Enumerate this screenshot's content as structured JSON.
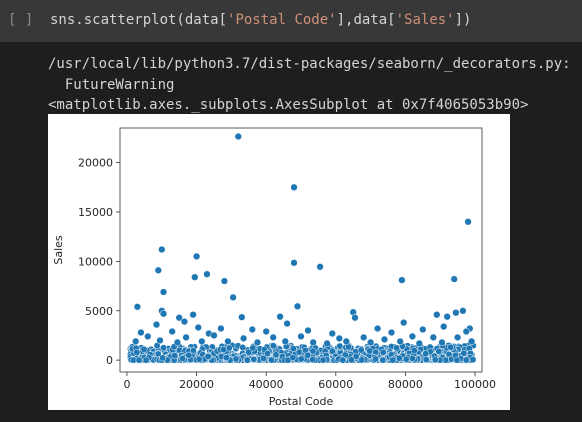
{
  "cell": {
    "run_indicator": "[ ]",
    "code": {
      "prefix": "sns.scatterplot(data[",
      "arg1": "'Postal Code'",
      "mid": "],data[",
      "arg2": "'Sales'",
      "suffix": "])"
    }
  },
  "output": {
    "warning_path": "/usr/local/lib/python3.7/dist-packages/seaborn/_decorators.py:",
    "warning_type": "  FutureWarning",
    "repr": "<matplotlib.axes._subplots.AxesSubplot at 0x7f4065053b90>"
  },
  "chart_data": {
    "type": "scatter",
    "xlabel": "Postal Code",
    "ylabel": "Sales",
    "xlim": [
      -2000,
      102000
    ],
    "ylim": [
      -1200,
      23500
    ],
    "xticks": [
      0,
      20000,
      40000,
      60000,
      80000,
      100000
    ],
    "yticks": [
      0,
      5000,
      10000,
      15000,
      20000
    ],
    "point_color": "#1f77b4",
    "grid": false,
    "points": [
      [
        32000,
        22638
      ],
      [
        48000,
        17500
      ],
      [
        98000,
        14000
      ],
      [
        10000,
        11200
      ],
      [
        20000,
        10500
      ],
      [
        48000,
        9850
      ],
      [
        55500,
        9450
      ],
      [
        9000,
        9100
      ],
      [
        23000,
        8700
      ],
      [
        19500,
        8400
      ],
      [
        28000,
        8000
      ],
      [
        79000,
        8100
      ],
      [
        94000,
        8200
      ],
      [
        10500,
        6900
      ],
      [
        30500,
        6350
      ],
      [
        3000,
        5400
      ],
      [
        49000,
        5450
      ],
      [
        10000,
        5000
      ],
      [
        96500,
        5000
      ],
      [
        65000,
        4850
      ],
      [
        19000,
        4600
      ],
      [
        15000,
        4300
      ],
      [
        33000,
        4350
      ],
      [
        44000,
        4400
      ],
      [
        89000,
        4600
      ],
      [
        92000,
        4400
      ],
      [
        94500,
        4800
      ],
      [
        10500,
        4700
      ],
      [
        98500,
        3200
      ],
      [
        65500,
        4300
      ],
      [
        79500,
        3800
      ],
      [
        16500,
        3900
      ],
      [
        8500,
        3600
      ],
      [
        46000,
        3700
      ],
      [
        20500,
        3300
      ],
      [
        27000,
        3200
      ],
      [
        36000,
        3100
      ],
      [
        52000,
        3000
      ],
      [
        72000,
        3200
      ],
      [
        85000,
        3100
      ],
      [
        91000,
        3400
      ],
      [
        4000,
        2800
      ],
      [
        13000,
        2900
      ],
      [
        23500,
        2700
      ],
      [
        40000,
        2900
      ],
      [
        59000,
        2700
      ],
      [
        76000,
        2800
      ],
      [
        97500,
        2900
      ],
      [
        6000,
        2400
      ],
      [
        17000,
        2300
      ],
      [
        25000,
        2500
      ],
      [
        33500,
        2200
      ],
      [
        42000,
        2300
      ],
      [
        50000,
        2400
      ],
      [
        61000,
        2200
      ],
      [
        68000,
        2300
      ],
      [
        74000,
        2100
      ],
      [
        82000,
        2400
      ],
      [
        88000,
        2300
      ],
      [
        95000,
        2300
      ],
      [
        2500,
        1900
      ],
      [
        9500,
        2000
      ],
      [
        14500,
        1800
      ],
      [
        21500,
        1900
      ],
      [
        29000,
        1900
      ],
      [
        37500,
        1800
      ],
      [
        45500,
        1900
      ],
      [
        53500,
        1800
      ],
      [
        57500,
        1700
      ],
      [
        63000,
        1900
      ],
      [
        70000,
        1800
      ],
      [
        78500,
        1900
      ],
      [
        84000,
        1700
      ],
      [
        90500,
        1800
      ],
      [
        99000,
        1900
      ]
    ]
  }
}
